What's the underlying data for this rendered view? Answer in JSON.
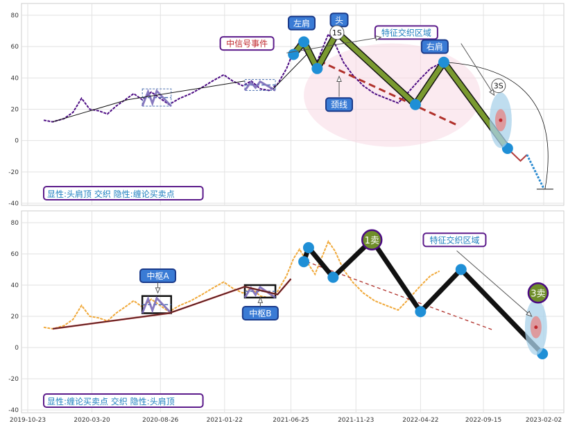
{
  "chart_data": [
    {
      "type": "line",
      "panel": "top",
      "ylim": [
        -40,
        85
      ],
      "yticks": [
        80,
        60,
        40,
        20,
        0,
        -20,
        -40
      ],
      "grid": true,
      "caption": "显性:头肩顶 交织 隐性:缠论买卖点",
      "price_series": [
        {
          "x": "2019-11-29",
          "y": 13
        },
        {
          "x": "2019-12-20",
          "y": 12
        },
        {
          "x": "2020-01-15",
          "y": 14
        },
        {
          "x": "2020-02-05",
          "y": 18
        },
        {
          "x": "2020-02-25",
          "y": 27
        },
        {
          "x": "2020-03-15",
          "y": 20
        },
        {
          "x": "2020-04-05",
          "y": 19
        },
        {
          "x": "2020-04-25",
          "y": 17
        },
        {
          "x": "2020-05-15",
          "y": 22
        },
        {
          "x": "2020-06-05",
          "y": 26
        },
        {
          "x": "2020-06-25",
          "y": 30
        },
        {
          "x": "2020-07-15",
          "y": 26
        },
        {
          "x": "2020-08-05",
          "y": 31
        },
        {
          "x": "2020-08-25",
          "y": 27
        },
        {
          "x": "2020-09-15",
          "y": 23
        },
        {
          "x": "2020-10-10",
          "y": 27
        },
        {
          "x": "2020-11-05",
          "y": 30
        },
        {
          "x": "2020-12-01",
          "y": 34
        },
        {
          "x": "2020-12-25",
          "y": 38
        },
        {
          "x": "2021-01-20",
          "y": 42
        },
        {
          "x": "2021-02-10",
          "y": 38
        },
        {
          "x": "2021-03-05",
          "y": 35
        },
        {
          "x": "2021-03-25",
          "y": 38
        },
        {
          "x": "2021-04-15",
          "y": 33
        },
        {
          "x": "2021-05-05",
          "y": 32
        },
        {
          "x": "2021-05-25",
          "y": 36
        },
        {
          "x": "2021-06-15",
          "y": 46
        },
        {
          "x": "2021-07-01",
          "y": 57
        },
        {
          "x": "2021-07-15",
          "y": 63
        },
        {
          "x": "2021-08-01",
          "y": 55
        },
        {
          "x": "2021-08-20",
          "y": 47
        },
        {
          "x": "2021-09-05",
          "y": 58
        },
        {
          "x": "2021-09-20",
          "y": 68
        },
        {
          "x": "2021-10-05",
          "y": 62
        },
        {
          "x": "2021-10-25",
          "y": 50
        },
        {
          "x": "2021-11-15",
          "y": 42
        },
        {
          "x": "2021-12-10",
          "y": 35
        },
        {
          "x": "2022-01-05",
          "y": 30
        },
        {
          "x": "2022-02-01",
          "y": 27
        },
        {
          "x": "2022-03-01",
          "y": 24
        },
        {
          "x": "2022-03-25",
          "y": 31
        },
        {
          "x": "2022-04-20",
          "y": 39
        },
        {
          "x": "2022-05-15",
          "y": 46
        },
        {
          "x": "2022-06-05",
          "y": 49
        }
      ],
      "trend_lines": [
        {
          "from": {
            "x": "2019-12-20",
            "y": 12
          },
          "to": {
            "x": "2020-06-10",
            "y": 26
          },
          "style": "thin-black"
        },
        {
          "from": {
            "x": "2020-06-10",
            "y": 26
          },
          "to": {
            "x": "2021-03-10",
            "y": 38
          },
          "style": "thin-black"
        },
        {
          "from": {
            "x": "2021-05-15",
            "y": 33
          },
          "to": {
            "x": "2021-08-01",
            "y": 55
          },
          "style": "thin-black"
        }
      ],
      "pattern_points": [
        {
          "x": "2021-07-01",
          "y": 55
        },
        {
          "x": "2021-07-25",
          "y": 63
        },
        {
          "x": "2021-08-25",
          "y": 46
        },
        {
          "x": "2021-10-10",
          "y": 69
        },
        {
          "x": "2022-04-10",
          "y": 23
        },
        {
          "x": "2022-06-15",
          "y": 50
        },
        {
          "x": "2022-11-10",
          "y": -5
        }
      ],
      "pattern_path_style": "olive-thick",
      "forecast_path": [
        {
          "x": "2022-11-10",
          "y": -5
        },
        {
          "x": "2022-12-10",
          "y": -13
        },
        {
          "x": "2022-12-25",
          "y": -9
        },
        {
          "x": "2023-02-01",
          "y": -30
        }
      ],
      "neckline": {
        "from": {
          "x": "2021-08-05",
          "y": 54
        },
        "to": {
          "x": "2022-07-15",
          "y": 10
        }
      },
      "zhongshu_boxes": [
        {
          "x0": "2020-07-15",
          "x1": "2020-09-20",
          "y0": 22,
          "y1": 33
        },
        {
          "x0": "2021-03-10",
          "x1": "2021-05-20",
          "y0": 32,
          "y1": 39
        }
      ],
      "trading_zone_ellipse": {
        "center": {
          "x": "2022-02-15",
          "y": 29
        },
        "rx_days": 205,
        "ry": 33
      },
      "arc_target": {
        "x": "2023-02-05",
        "y": -31
      },
      "annotations": [
        {
          "text": "中信号事件",
          "x": "2021-03-15",
          "y": 62,
          "style": "white-purple-red"
        },
        {
          "text": "左肩",
          "x": "2021-07-20",
          "y": 75,
          "style": "blue"
        },
        {
          "text": "头",
          "x": "2021-10-15",
          "y": 77,
          "style": "blue"
        },
        {
          "text": "1S",
          "x": "2021-10-10",
          "y": 69,
          "style": "circle"
        },
        {
          "text": "特征交织区域",
          "x": "2022-03-20",
          "y": 69,
          "style": "white-purple-blue"
        },
        {
          "text": "右肩",
          "x": "2022-05-25",
          "y": 60,
          "style": "blue"
        },
        {
          "text": "颈线",
          "x": "2021-10-15",
          "y": 23,
          "style": "blue"
        },
        {
          "text": "3S",
          "x": "2022-10-20",
          "y": 35,
          "style": "circle"
        }
      ]
    },
    {
      "type": "line",
      "panel": "bottom",
      "ylim": [
        -40,
        85
      ],
      "yticks": [
        80,
        60,
        40,
        20,
        0,
        -20,
        -40
      ],
      "grid": true,
      "caption": "显性:缠论买卖点 交织 隐性:头肩顶",
      "xticks": [
        "2019-10-23",
        "2020-03-20",
        "2020-08-26",
        "2021-01-22",
        "2021-06-25",
        "2021-11-23",
        "2022-04-22",
        "2022-09-15",
        "2023-02-02"
      ],
      "price_series": [
        {
          "x": "2019-11-29",
          "y": 13
        },
        {
          "x": "2019-12-20",
          "y": 12
        },
        {
          "x": "2020-01-15",
          "y": 14
        },
        {
          "x": "2020-02-05",
          "y": 18
        },
        {
          "x": "2020-02-25",
          "y": 27
        },
        {
          "x": "2020-03-15",
          "y": 20
        },
        {
          "x": "2020-04-05",
          "y": 19
        },
        {
          "x": "2020-04-25",
          "y": 17
        },
        {
          "x": "2020-05-15",
          "y": 22
        },
        {
          "x": "2020-06-05",
          "y": 26
        },
        {
          "x": "2020-06-25",
          "y": 30
        },
        {
          "x": "2020-07-15",
          "y": 26
        },
        {
          "x": "2020-08-05",
          "y": 31
        },
        {
          "x": "2020-08-25",
          "y": 27
        },
        {
          "x": "2020-09-15",
          "y": 23
        },
        {
          "x": "2020-10-10",
          "y": 27
        },
        {
          "x": "2020-11-05",
          "y": 30
        },
        {
          "x": "2020-12-01",
          "y": 34
        },
        {
          "x": "2020-12-25",
          "y": 38
        },
        {
          "x": "2021-01-20",
          "y": 42
        },
        {
          "x": "2021-02-10",
          "y": 38
        },
        {
          "x": "2021-03-05",
          "y": 35
        },
        {
          "x": "2021-03-25",
          "y": 38
        },
        {
          "x": "2021-04-15",
          "y": 33
        },
        {
          "x": "2021-05-05",
          "y": 32
        },
        {
          "x": "2021-05-25",
          "y": 36
        },
        {
          "x": "2021-06-15",
          "y": 46
        },
        {
          "x": "2021-07-01",
          "y": 57
        },
        {
          "x": "2021-07-15",
          "y": 63
        },
        {
          "x": "2021-08-01",
          "y": 55
        },
        {
          "x": "2021-08-20",
          "y": 47
        },
        {
          "x": "2021-09-05",
          "y": 58
        },
        {
          "x": "2021-09-20",
          "y": 68
        },
        {
          "x": "2021-10-05",
          "y": 62
        },
        {
          "x": "2021-10-25",
          "y": 50
        },
        {
          "x": "2021-11-15",
          "y": 42
        },
        {
          "x": "2021-12-10",
          "y": 35
        },
        {
          "x": "2022-01-05",
          "y": 30
        },
        {
          "x": "2022-02-01",
          "y": 27
        },
        {
          "x": "2022-03-01",
          "y": 24
        },
        {
          "x": "2022-03-25",
          "y": 31
        },
        {
          "x": "2022-04-20",
          "y": 39
        },
        {
          "x": "2022-05-15",
          "y": 46
        },
        {
          "x": "2022-06-05",
          "y": 49
        }
      ],
      "bi_path": [
        {
          "x": "2019-12-20",
          "y": 12
        },
        {
          "x": "2020-09-15",
          "y": 22
        },
        {
          "x": "2021-03-10",
          "y": 39
        },
        {
          "x": "2021-05-25",
          "y": 34
        },
        {
          "x": "2021-06-25",
          "y": 44
        }
      ],
      "pattern_points": [
        {
          "x": "2021-07-25",
          "y": 55
        },
        {
          "x": "2021-08-05",
          "y": 64
        },
        {
          "x": "2021-10-01",
          "y": 45
        },
        {
          "x": "2021-12-30",
          "y": 69
        },
        {
          "x": "2022-04-22",
          "y": 23
        },
        {
          "x": "2022-07-25",
          "y": 50
        },
        {
          "x": "2023-01-30",
          "y": -4
        }
      ],
      "pattern_path_style": "black-thick",
      "dashed_line": {
        "from": {
          "x": "2021-08-01",
          "y": 55
        },
        "to": {
          "x": "2022-10-10",
          "y": 11
        }
      },
      "zhongshu_boxes": [
        {
          "x0": "2020-07-15",
          "x1": "2020-09-20",
          "y0": 22,
          "y1": 33,
          "label": "中枢A"
        },
        {
          "x0": "2021-03-10",
          "x1": "2021-05-20",
          "y0": 32,
          "y1": 40,
          "label": "中枢B"
        }
      ],
      "annotations": [
        {
          "text": "中枢A",
          "x": "2020-08-20",
          "y": 46,
          "style": "blue"
        },
        {
          "text": "中枢B",
          "x": "2021-04-15",
          "y": 22,
          "style": "blue"
        },
        {
          "text": "1卖",
          "x": "2021-12-30",
          "y": 69,
          "style": "olive-circle"
        },
        {
          "text": "特征交织区域",
          "x": "2022-07-10",
          "y": 69,
          "style": "white-purple-blue"
        },
        {
          "text": "3卖",
          "x": "2023-01-20",
          "y": 35,
          "style": "olive-circle"
        }
      ]
    }
  ]
}
